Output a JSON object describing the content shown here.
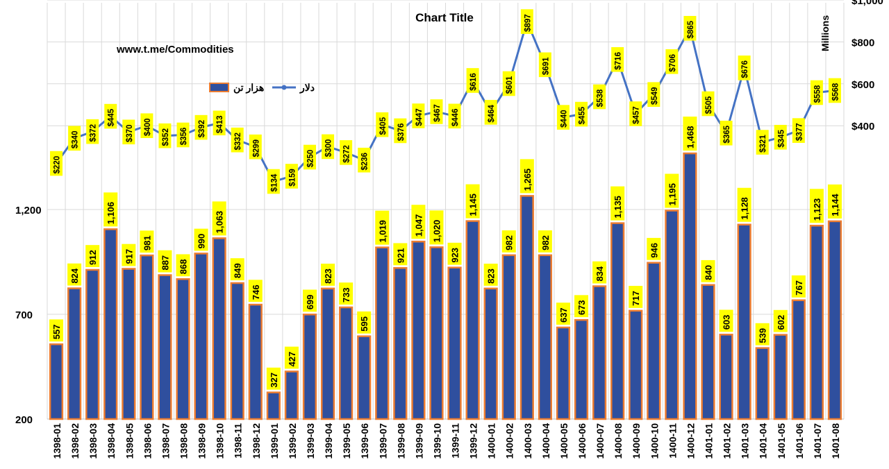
{
  "chart_data": {
    "type": "bar",
    "title": "Chart Title",
    "watermark": "www.t.me/Commodities",
    "categories": [
      "1398-01",
      "1398-02",
      "1398-03",
      "1398-04",
      "1398-05",
      "1398-06",
      "1398-07",
      "1398-08",
      "1398-09",
      "1398-10",
      "1398-11",
      "1398-12",
      "1399-01",
      "1399-02",
      "1399-03",
      "1399-04",
      "1399-05",
      "1399-06",
      "1399-07",
      "1399-08",
      "1399-09",
      "1399-10",
      "1399-11",
      "1399-12",
      "1400-01",
      "1400-02",
      "1400-03",
      "1400-04",
      "1400-05",
      "1400-06",
      "1400-07",
      "1400-08",
      "1400-09",
      "1400-10",
      "1400-11",
      "1400-12",
      "1401-01",
      "1401-02",
      "1401-03",
      "1401-04",
      "1401-05",
      "1401-06",
      "1401-07",
      "1401-08"
    ],
    "series": [
      {
        "name": "هزار تن",
        "type": "bar",
        "axis": "left",
        "color": "#2f4f9e",
        "border_color": "#ed7d31",
        "values": [
          557,
          824,
          912,
          1106,
          917,
          981,
          887,
          868,
          990,
          1063,
          849,
          746,
          327,
          427,
          699,
          823,
          733,
          595,
          1019,
          921,
          1047,
          1020,
          923,
          1145,
          823,
          982,
          1265,
          982,
          637,
          673,
          834,
          1135,
          717,
          946,
          1195,
          1468,
          840,
          603,
          1128,
          539,
          602,
          767,
          1123,
          1144
        ],
        "labels": [
          "557",
          "824",
          "912",
          "1,106",
          "917",
          "981",
          "887",
          "868",
          "990",
          "1,063",
          "849",
          "746",
          "327",
          "427",
          "699",
          "823",
          "733",
          "595",
          "1,019",
          "921",
          "1,047",
          "1,020",
          "923",
          "1,145",
          "823",
          "982",
          "1,265",
          "982",
          "637",
          "673",
          "834",
          "1,135",
          "717",
          "946",
          "1,195",
          "1,468",
          "840",
          "603",
          "1,128",
          "539",
          "602",
          "767",
          "1,123",
          "1,144"
        ]
      },
      {
        "name": "دلار",
        "type": "line",
        "axis": "right",
        "unit": "Millions",
        "color": "#4472c4",
        "values": [
          220,
          340,
          372,
          445,
          370,
          400,
          352,
          356,
          392,
          413,
          332,
          299,
          134,
          159,
          250,
          300,
          272,
          236,
          405,
          376,
          447,
          467,
          446,
          616,
          464,
          601,
          897,
          691,
          440,
          455,
          538,
          716,
          457,
          549,
          706,
          865,
          505,
          365,
          676,
          321,
          345,
          377,
          558,
          568
        ],
        "labels": [
          "$220",
          "$340",
          "$372",
          "$445",
          "$370",
          "$400",
          "$352",
          "$356",
          "$392",
          "$413",
          "$332",
          "$299",
          "$134",
          "$159",
          "$250",
          "$300",
          "$272",
          "$236",
          "$405",
          "$376",
          "$447",
          "$467",
          "$446",
          "$616",
          "$464",
          "$601",
          "$897",
          "$691",
          "$440",
          "$455",
          "$538",
          "$716",
          "$457",
          "$549",
          "$706",
          "$865",
          "$505",
          "$365",
          "$676",
          "$321",
          "$345",
          "$377",
          "$558",
          "$568"
        ]
      }
    ],
    "y_left": {
      "ticks": [
        200,
        700,
        1200
      ],
      "tick_labels": [
        "200",
        "700",
        "1,200"
      ],
      "range": [
        200,
        2200
      ]
    },
    "y_right": {
      "ticks": [
        400,
        600,
        800,
        1000
      ],
      "tick_labels": [
        "$400",
        "$600",
        "$800",
        "$1,000"
      ],
      "range": [
        -1000,
        1000
      ],
      "label": "Millions"
    },
    "label_bg": "#ffff00",
    "grid": true,
    "legend_position": "top-left"
  }
}
